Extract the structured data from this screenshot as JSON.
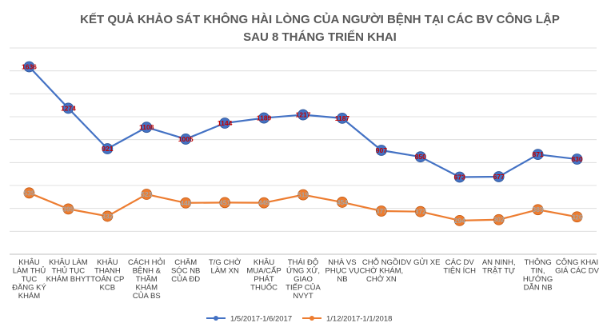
{
  "chart_data": {
    "type": "line",
    "title_lines": [
      "KẾT QUẢ KHẢO SÁT KHÔNG HÀI LÒNG CỦA NGƯỜI BỆNH TẠI CÁC BV CÔNG LẬP",
      "SAU 8 THÁNG TRIỂN KHAI"
    ],
    "categories": [
      [
        "KHÂU",
        "LÀM THỦ",
        "TỤC",
        "ĐĂNG KÝ",
        "KHÁM"
      ],
      [
        "KHÂU LÀM",
        "THỦ TỤC",
        "KHÁM BHYT"
      ],
      [
        "KHÂU",
        "THANH",
        "TOÁN CP",
        "KCB"
      ],
      [
        "CÁCH HỎI",
        "BỆNH &",
        "THĂM",
        "KHÁM",
        "CỦA BS"
      ],
      [
        "CHĂM",
        "SÓC NB",
        "CỦA ĐD"
      ],
      [
        "T/G CHỜ",
        "LÀM XN"
      ],
      [
        "KHÂU",
        "MUA/CẤP",
        "PHÁT",
        "THUỐC"
      ],
      [
        "THÁI ĐỘ",
        "ỨNG XỬ,",
        "GIAO",
        "TIẾP CỦA",
        "NVYT"
      ],
      [
        "NHÀ VS",
        "PHỤC VỤ",
        "NB"
      ],
      [
        "CHỖ NGỒI",
        "CHỜ KHÁM,",
        "CHỜ XN"
      ],
      [
        "DV GỬI XE"
      ],
      [
        "CÁC DV",
        "TIỆN ÍCH"
      ],
      [
        "AN NINH,",
        "TRẬT TỰ"
      ],
      [
        "THÔNG",
        "TIN,",
        "HƯỚNG",
        "DẪN NB"
      ],
      [
        "CÔNG KHAI",
        "GIÁ CÁC DV"
      ]
    ],
    "series": [
      {
        "name": "1/5/2017-1/6/2017",
        "color": "#4472c4",
        "values": [
          1636,
          1274,
          921,
          1108,
          1005,
          1144,
          1189,
          1217,
          1187,
          907,
          850,
          673,
          677,
          871,
          830
        ]
      },
      {
        "name": "1/12/2017-1/1/2018",
        "color": "#ed7d31",
        "values": [
          535,
          395,
          332,
          523,
          448,
          451,
          449,
          519,
          454,
          377,
          372,
          294,
          302,
          389,
          326
        ]
      }
    ],
    "ylim": [
      0,
      1800
    ],
    "gridline_values": [
      200,
      400,
      600,
      800,
      1000,
      1200,
      1400,
      1600,
      1800
    ],
    "y_tick_labels_shown": false,
    "grid": true,
    "legend_position": "bottom"
  }
}
